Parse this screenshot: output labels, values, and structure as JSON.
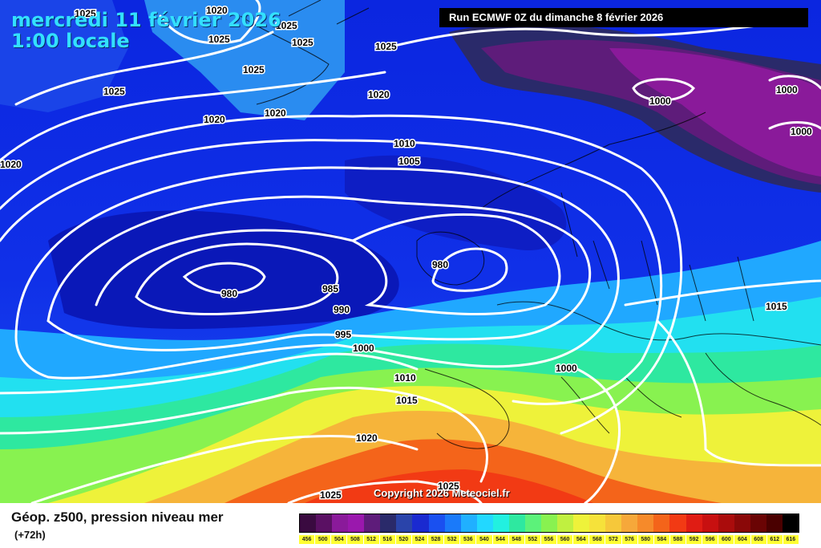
{
  "header": {
    "date_line1": "mercredi 11 février 2026",
    "date_line2": "1:00 locale",
    "run": "Run ECMWF 0Z du dimanche 8 février 2026"
  },
  "map": {
    "copyright": "Copyright 2026 Meteociel.fr",
    "isobar_labels": [
      "1025",
      "1020",
      "1025",
      "1025",
      "1025",
      "1025",
      "1025",
      "1025",
      "1020",
      "1020",
      "1020",
      "1020",
      "1020",
      "1010",
      "1005",
      "1000",
      "1000",
      "1000",
      "980",
      "980",
      "985",
      "990",
      "995",
      "1000",
      "1010",
      "1015",
      "1020",
      "1025",
      "1025",
      "1000",
      "1015"
    ],
    "colors": {
      "low": "#0a1fd0",
      "mid": "#22d2ff",
      "green": "#5cf27a",
      "high": "#ff5a1a",
      "isobar": "#ffffff"
    }
  },
  "legend": {
    "title": "Géop. z500, pression niveau mer",
    "subtitle": "(+72h)",
    "scale_labels": [
      "456",
      "500",
      "504",
      "508",
      "512",
      "516",
      "520",
      "524",
      "528",
      "532",
      "536",
      "540",
      "544",
      "548",
      "552",
      "556",
      "560",
      "564",
      "568",
      "572",
      "576",
      "580",
      "584",
      "588",
      "592",
      "596",
      "600",
      "604",
      "608",
      "612",
      "616"
    ],
    "scale_colors": [
      "#3a0a40",
      "#5a1063",
      "#8a1a9a",
      "#9a18ad",
      "#5e1c7a",
      "#2a2a6a",
      "#2a44aa",
      "#1a2ad0",
      "#1a50f0",
      "#1a7afa",
      "#20b0ff",
      "#22d8ff",
      "#22f0e0",
      "#2ee8a0",
      "#5cf27a",
      "#88f250",
      "#c0f040",
      "#eef23a",
      "#f6e23a",
      "#f6c83a",
      "#f6a83a",
      "#f68a2a",
      "#f4641a",
      "#f23a14",
      "#e01c14",
      "#c81010",
      "#aa0c0c",
      "#8a0808",
      "#6a0404",
      "#4a0000",
      "#000000"
    ]
  }
}
